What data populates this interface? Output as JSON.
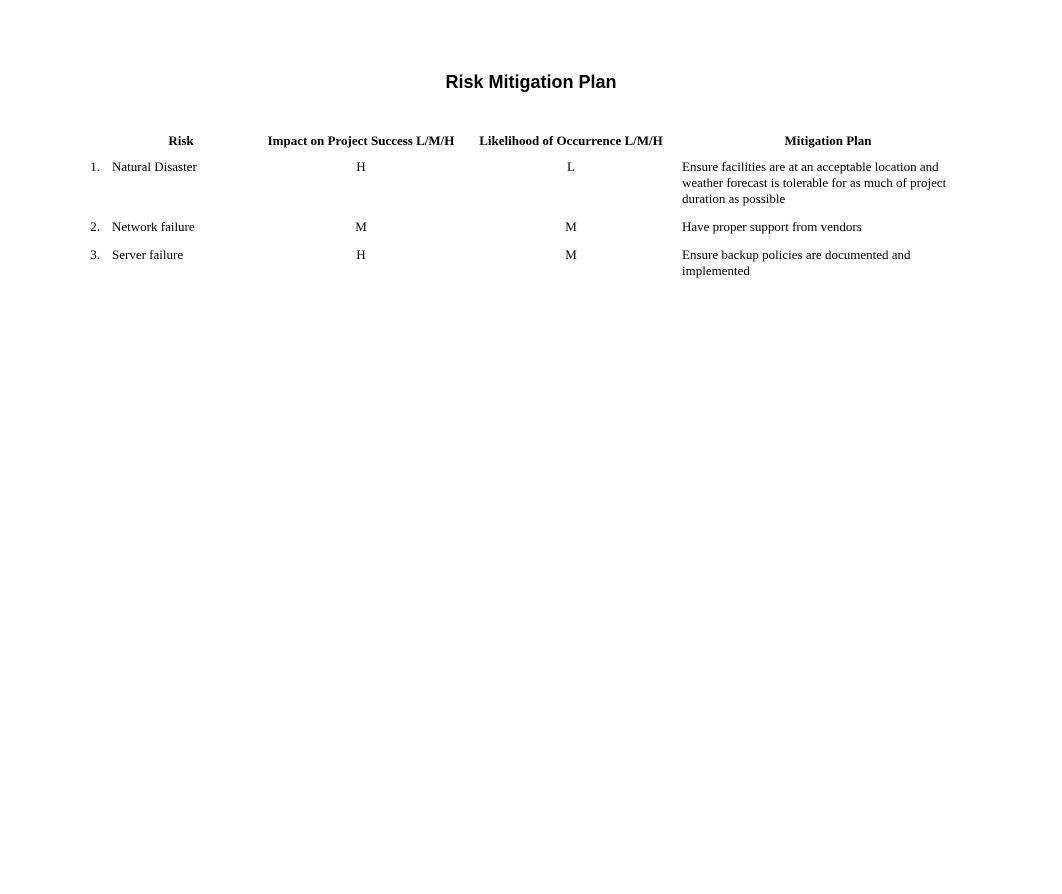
{
  "title": "Risk Mitigation Plan",
  "table": {
    "headers": {
      "num": "",
      "risk": "Risk",
      "impact": "Impact on Project Success L/M/H",
      "likelihood": "Likelihood of Occurrence L/M/H",
      "mitigation": "Mitigation Plan"
    },
    "rows": [
      {
        "num": "1.",
        "risk": "Natural Disaster",
        "impact": "H",
        "likelihood": "L",
        "mitigation": "Ensure facilities are at an acceptable location and weather forecast is tolerable for as much of project duration as possible"
      },
      {
        "num": "2.",
        "risk": "Network failure",
        "impact": "M",
        "likelihood": "M",
        "mitigation": "Have proper support from vendors"
      },
      {
        "num": "3.",
        "risk": "Server failure",
        "impact": "H",
        "likelihood": "M",
        "mitigation": "Ensure backup policies are documented and implemented"
      }
    ],
    "styling": {
      "header_font_weight": "bold",
      "header_font_size": 13,
      "cell_font_size": 13,
      "font_family": "Times New Roman",
      "title_font_family": "Arial",
      "title_font_size": 18,
      "title_font_weight": "bold",
      "background_color": "#ffffff",
      "text_color": "#000000",
      "column_widths": {
        "num": 24,
        "risk": 150,
        "impact": 210,
        "likelihood": 210,
        "mitigation": "auto"
      },
      "column_alignment": {
        "num": "right",
        "risk": "left",
        "impact": "center",
        "likelihood": "center",
        "mitigation": "left"
      },
      "header_alignment": "center"
    }
  }
}
